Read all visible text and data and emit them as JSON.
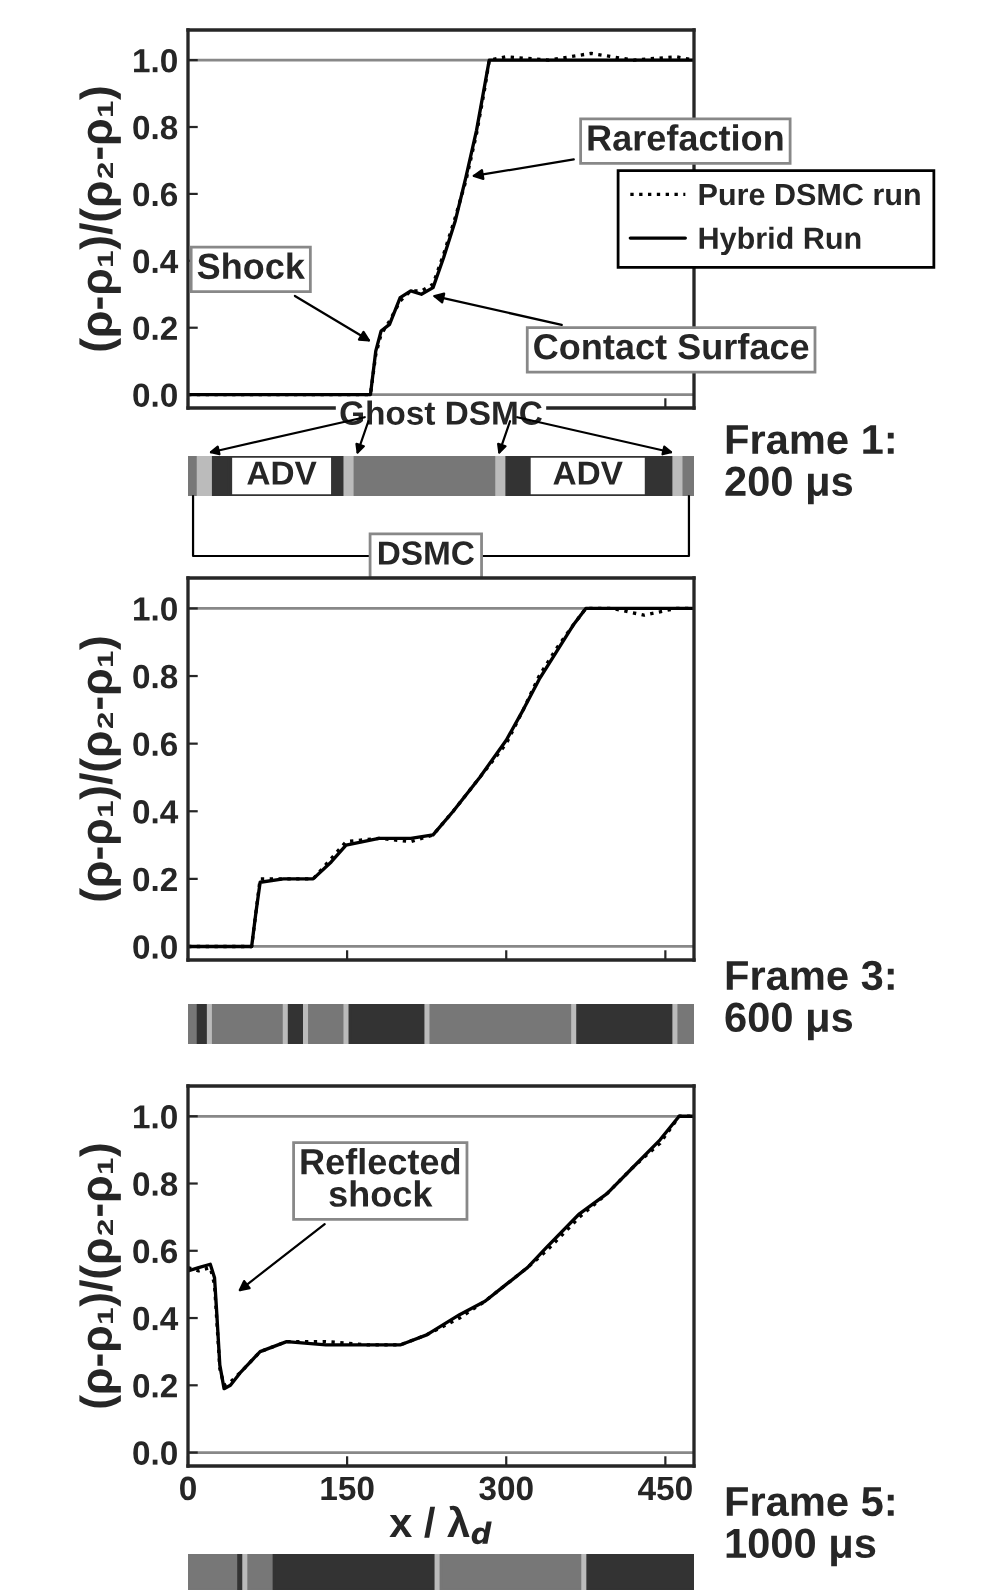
{
  "chart_data": [
    {
      "type": "line",
      "ylabel": "(ρ-ρ₁)/(ρ₂-ρ₁)",
      "xlim": [
        0,
        477
      ],
      "ylim": [
        -0.04,
        1.09
      ],
      "xticks": [
        0,
        150,
        300,
        450
      ],
      "yticks": [
        {
          "value": 0,
          "label": "0.0"
        },
        {
          "value": 0.2,
          "label": "0.2"
        },
        {
          "value": 0.4,
          "label": "0.4"
        },
        {
          "value": 0.6,
          "label": "0.6"
        },
        {
          "value": 0.8,
          "label": "0.8"
        },
        {
          "value": 1,
          "label": "1.0"
        }
      ],
      "tick_labels": "y",
      "grid": false,
      "legend": "right",
      "x": [
        0,
        40,
        80,
        120,
        160,
        172,
        177,
        182,
        190,
        200,
        210,
        220,
        231,
        241,
        252,
        262,
        272,
        280,
        284,
        300,
        340,
        380,
        420,
        460,
        477
      ],
      "series": [
        {
          "name": "Pure DSMC run",
          "color": "#000000",
          "line_style": "dotted",
          "values": [
            0.0,
            0.0,
            0.0,
            0.0,
            0.0,
            0.0,
            0.12,
            0.18,
            0.22,
            0.28,
            0.31,
            0.31,
            0.33,
            0.42,
            0.53,
            0.64,
            0.78,
            0.92,
            1.0,
            1.01,
            1.0,
            1.02,
            1.0,
            1.01,
            1.0
          ]
        },
        {
          "name": "Hybrid Run",
          "color": "#000000",
          "line_style": "solid",
          "values": [
            0.0,
            0.0,
            0.0,
            0.0,
            0.0,
            0.0,
            0.13,
            0.19,
            0.21,
            0.29,
            0.31,
            0.3,
            0.32,
            0.41,
            0.52,
            0.65,
            0.79,
            0.93,
            1.0,
            1.0,
            1.0,
            1.0,
            1.0,
            1.0,
            1.0
          ]
        }
      ],
      "ref_lines": [
        {
          "axis": "y",
          "value": 0,
          "color": "#888888"
        },
        {
          "axis": "y",
          "value": 1,
          "color": "#888888"
        }
      ],
      "annotations": [
        {
          "text": "Shock",
          "x": 177,
          "y": 0.15
        },
        {
          "text": "Contact Surface",
          "x": 225,
          "y": 0.3
        },
        {
          "text": "Rarefaction",
          "x": 262,
          "y": 0.65
        },
        "Ghost DSMC",
        "ADV",
        "ADV",
        "DSMC",
        "Frame 1:\n200 μs"
      ]
    },
    {
      "type": "line",
      "ylabel": "(ρ-ρ₁)/(ρ₂-ρ₁)",
      "xlim": [
        0,
        477
      ],
      "ylim": [
        -0.04,
        1.09
      ],
      "xticks": [
        0,
        150,
        300,
        450
      ],
      "yticks": [
        {
          "value": 0,
          "label": "0.0"
        },
        {
          "value": 0.2,
          "label": "0.2"
        },
        {
          "value": 0.4,
          "label": "0.4"
        },
        {
          "value": 0.6,
          "label": "0.6"
        },
        {
          "value": 0.8,
          "label": "0.8"
        },
        {
          "value": 1,
          "label": "1.0"
        }
      ],
      "tick_labels": "y",
      "grid": false,
      "x": [
        0,
        30,
        60,
        64,
        68,
        90,
        118,
        135,
        149,
        180,
        210,
        231,
        250,
        275,
        300,
        316,
        331,
        347,
        363,
        375,
        400,
        430,
        460,
        477
      ],
      "series": [
        {
          "color": "#000000",
          "line_style": "dotted",
          "values": [
            0.0,
            0.0,
            0.0,
            0.1,
            0.2,
            0.2,
            0.2,
            0.26,
            0.31,
            0.32,
            0.31,
            0.33,
            0.4,
            0.5,
            0.6,
            0.7,
            0.8,
            0.88,
            0.95,
            1.0,
            1.0,
            0.98,
            1.0,
            1.0
          ]
        },
        {
          "color": "#000000",
          "line_style": "solid",
          "values": [
            0.0,
            0.0,
            0.0,
            0.1,
            0.19,
            0.2,
            0.2,
            0.25,
            0.3,
            0.32,
            0.32,
            0.33,
            0.4,
            0.5,
            0.61,
            0.7,
            0.79,
            0.87,
            0.95,
            1.0,
            1.0,
            1.0,
            1.0,
            1.0
          ]
        }
      ],
      "ref_lines": [
        {
          "axis": "y",
          "value": 0,
          "color": "#888888"
        },
        {
          "axis": "y",
          "value": 1,
          "color": "#888888"
        }
      ],
      "annotations": [
        "Frame 3:\n600 μs"
      ]
    },
    {
      "type": "line",
      "ylabel": "(ρ-ρ₁)/(ρ₂-ρ₁)",
      "xlabel": "x / λ$_{d}$",
      "xlim": [
        0,
        477
      ],
      "ylim": [
        -0.04,
        1.09
      ],
      "xticks": [
        0,
        150,
        300,
        450
      ],
      "yticks": [
        {
          "value": 0,
          "label": "0.0"
        },
        {
          "value": 0.2,
          "label": "0.2"
        },
        {
          "value": 0.4,
          "label": "0.4"
        },
        {
          "value": 0.6,
          "label": "0.6"
        },
        {
          "value": 0.8,
          "label": "0.8"
        },
        {
          "value": 1,
          "label": "1.0"
        }
      ],
      "grid": false,
      "x": [
        0,
        10,
        21,
        25,
        27,
        30,
        34,
        40,
        50,
        68,
        93,
        130,
        170,
        200,
        225,
        256,
        280,
        300,
        320,
        338,
        369,
        395,
        420,
        445,
        463,
        477
      ],
      "series": [
        {
          "color": "#000000",
          "line_style": "dotted",
          "values": [
            0.55,
            0.54,
            0.55,
            0.5,
            0.4,
            0.25,
            0.2,
            0.21,
            0.24,
            0.3,
            0.33,
            0.33,
            0.32,
            0.32,
            0.35,
            0.4,
            0.45,
            0.5,
            0.55,
            0.6,
            0.7,
            0.77,
            0.85,
            0.92,
            1.0,
            1.0
          ]
        },
        {
          "color": "#000000",
          "line_style": "solid",
          "values": [
            0.54,
            0.55,
            0.56,
            0.52,
            0.42,
            0.26,
            0.19,
            0.2,
            0.24,
            0.3,
            0.33,
            0.32,
            0.32,
            0.32,
            0.35,
            0.41,
            0.45,
            0.5,
            0.55,
            0.61,
            0.71,
            0.77,
            0.85,
            0.93,
            1.0,
            1.0
          ]
        }
      ],
      "ref_lines": [
        {
          "axis": "y",
          "value": 0,
          "color": "#888888"
        },
        {
          "axis": "y",
          "value": 1,
          "color": "#888888"
        }
      ],
      "annotations": [
        "Reflected\nshock",
        "Frame 5:\n1000 μs"
      ]
    }
  ]
}
